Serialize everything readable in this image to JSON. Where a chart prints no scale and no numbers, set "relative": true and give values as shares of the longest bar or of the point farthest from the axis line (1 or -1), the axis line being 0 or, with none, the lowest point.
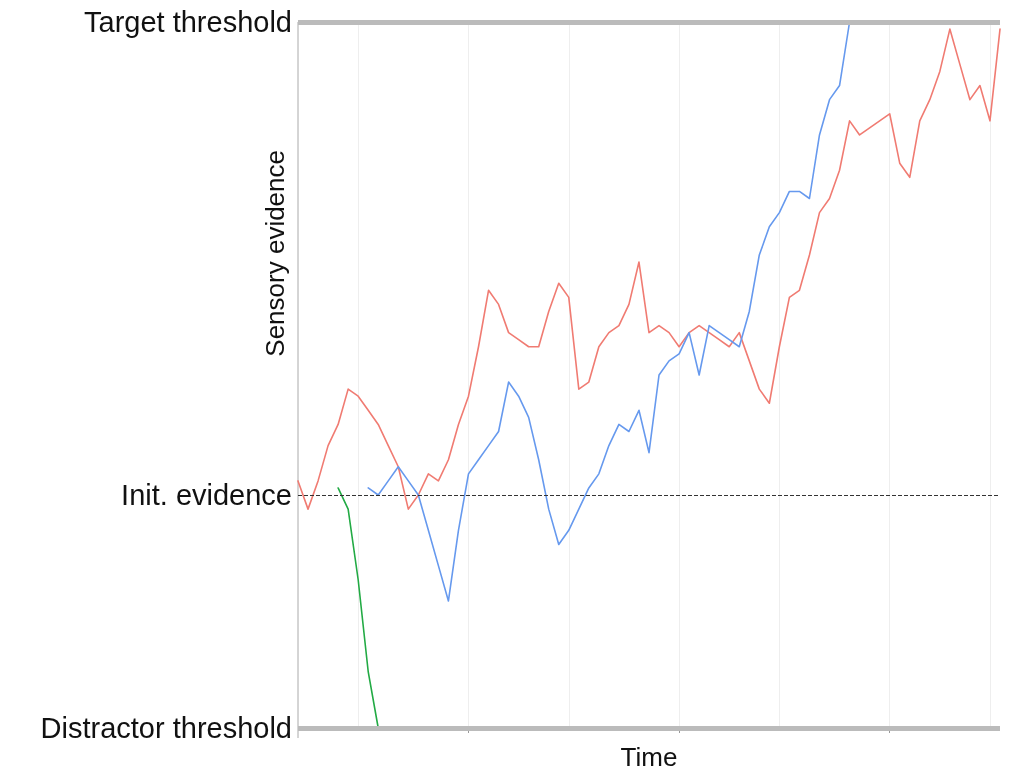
{
  "chart_data": {
    "type": "line",
    "xlabel": "Time",
    "ylabel": "Sensory evidence",
    "relative": true,
    "categories": [
      null,
      null,
      null,
      null,
      null,
      null,
      null,
      null,
      null,
      null,
      null,
      null,
      null,
      null,
      null,
      null,
      null,
      null,
      null,
      null,
      null,
      null,
      null,
      null,
      null,
      null,
      null,
      null,
      null,
      null,
      null,
      null,
      null,
      null,
      null,
      null,
      null,
      null,
      null,
      null,
      null,
      null,
      null,
      null,
      null,
      null,
      null,
      null,
      null,
      null,
      null,
      null,
      null,
      null,
      null,
      null,
      null,
      null,
      null,
      null,
      null,
      null,
      null,
      null,
      null,
      null,
      null,
      null,
      null,
      null,
      null
    ],
    "series": [
      {
        "color": "#f07b72",
        "values": [
          0.35,
          0.31,
          0.35,
          0.4,
          0.43,
          0.48,
          0.47,
          0.45,
          0.43,
          0.4,
          0.37,
          0.31,
          0.33,
          0.36,
          0.35,
          0.38,
          0.43,
          0.47,
          0.54,
          0.62,
          0.6,
          0.56,
          0.55,
          0.54,
          0.54,
          0.59,
          0.63,
          0.61,
          0.48,
          0.49,
          0.54,
          0.56,
          0.57,
          0.6,
          0.66,
          0.56,
          0.57,
          0.56,
          0.54,
          0.56,
          0.57,
          0.56,
          0.55,
          0.54,
          0.56,
          0.52,
          0.48,
          0.46,
          0.54,
          0.61,
          0.62,
          0.67,
          0.73,
          0.75,
          0.79,
          0.86,
          0.84,
          0.85,
          0.86,
          0.87,
          0.8,
          0.78,
          0.86,
          0.89,
          0.93,
          0.99,
          0.94,
          0.89,
          0.91,
          0.86,
          0.99
        ]
      },
      {
        "color": "#6699ee",
        "values": [
          null,
          null,
          null,
          null,
          null,
          null,
          null,
          0.34,
          0.33,
          0.35,
          0.37,
          0.35,
          0.33,
          0.28,
          0.23,
          0.18,
          0.28,
          0.36,
          0.38,
          0.4,
          0.42,
          0.49,
          0.47,
          0.44,
          0.38,
          0.31,
          0.26,
          0.28,
          0.31,
          0.34,
          0.36,
          0.4,
          0.43,
          0.42,
          0.45,
          0.39,
          0.5,
          0.52,
          0.53,
          0.56,
          0.5,
          0.57,
          0.56,
          0.55,
          0.54,
          0.59,
          0.67,
          0.71,
          0.73,
          0.76,
          0.76,
          0.75,
          0.84,
          0.89,
          0.91,
          1,
          null,
          null,
          null,
          null,
          null,
          null,
          null,
          null,
          null,
          null,
          null,
          null,
          null,
          null,
          null
        ]
      },
      {
        "color": "#22aa44",
        "values": [
          null,
          null,
          null,
          null,
          0.34,
          0.31,
          0.21,
          0.08,
          0,
          null,
          null,
          null,
          null,
          null,
          null,
          null,
          null,
          null,
          null,
          null,
          null,
          null,
          null,
          null,
          null,
          null,
          null,
          null,
          null,
          null,
          null,
          null,
          null,
          null,
          null,
          null,
          null,
          null,
          null,
          null,
          null,
          null,
          null,
          null,
          null,
          null,
          null,
          null,
          null,
          null,
          null,
          null,
          null,
          null,
          null,
          null,
          null,
          null,
          null,
          null,
          null,
          null,
          null,
          null,
          null,
          null,
          null,
          null,
          null,
          null,
          null
        ]
      }
    ],
    "ref_lines": [
      {
        "axis": "y",
        "value": 1,
        "label": "Target threshold",
        "color": "#bbbbbb",
        "line_style": "solid"
      },
      {
        "axis": "y",
        "value": 0.33,
        "label": "Init. evidence",
        "color": "#333333",
        "line_style": "dashed"
      },
      {
        "axis": "y",
        "value": 0,
        "label": "Distractor threshold",
        "color": "#bbbbbb",
        "line_style": "solid"
      }
    ],
    "grid": "x",
    "marker": "none"
  }
}
